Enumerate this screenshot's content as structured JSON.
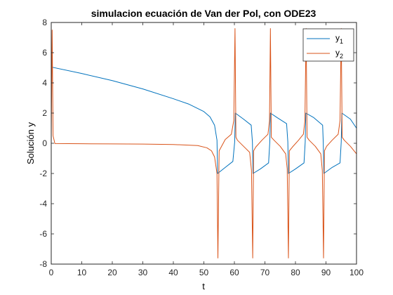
{
  "chart_data": {
    "type": "line",
    "title": "simulacion ecuación de Van der Pol, con ODE23",
    "xlabel": "t",
    "ylabel": "Solución y",
    "xlim": [
      0,
      100
    ],
    "ylim": [
      -8,
      8
    ],
    "xticks": [
      0,
      10,
      20,
      30,
      40,
      50,
      60,
      70,
      80,
      90,
      100
    ],
    "yticks": [
      -8,
      -6,
      -4,
      -2,
      0,
      2,
      4,
      6,
      8
    ],
    "grid": false,
    "legend_position": "top-right",
    "legend": [
      {
        "name": "y",
        "subscript": "1"
      },
      {
        "name": "y",
        "subscript": "2"
      }
    ],
    "series": [
      {
        "name": "y1",
        "color": "#0072BD",
        "x": [
          0,
          10,
          20,
          30,
          40,
          45,
          50,
          52,
          53.5,
          54.3,
          54.5,
          57,
          59.5,
          60.1,
          60.3,
          63,
          65.5,
          65.9,
          66.1,
          68.5,
          71.2,
          71.6,
          71.8,
          74,
          77.1,
          77.5,
          77.7,
          80,
          82.8,
          83.2,
          83.4,
          86,
          88.9,
          89.1,
          89.3,
          92,
          94.6,
          95,
          95.2,
          98,
          100
        ],
        "y": [
          5.05,
          4.62,
          4.15,
          3.6,
          2.95,
          2.6,
          2.1,
          1.75,
          1.2,
          0.2,
          -2.0,
          -1.6,
          -1.2,
          0.1,
          2.0,
          1.6,
          1.2,
          0.1,
          -2.0,
          -1.7,
          -1.3,
          0.1,
          2.0,
          1.7,
          1.3,
          0.1,
          -2.0,
          -1.7,
          -1.3,
          0.1,
          2.0,
          1.7,
          1.2,
          0.1,
          -2.0,
          -1.6,
          -1.3,
          0.1,
          2.0,
          1.6,
          1.0
        ]
      },
      {
        "name": "y2",
        "color": "#D95319",
        "x": [
          0,
          0.3,
          0.6,
          1.2,
          10,
          20,
          30,
          40,
          48,
          51,
          52.5,
          53.5,
          54.3,
          54.6,
          55,
          57,
          59,
          59.8,
          60.2,
          60.5,
          61,
          63,
          65,
          65.6,
          66,
          66.3,
          67,
          69,
          71,
          71.5,
          71.8,
          72.1,
          73,
          75,
          76.8,
          77.3,
          77.7,
          78,
          79,
          81,
          82.6,
          83.1,
          83.5,
          83.8,
          84.5,
          86.5,
          88.3,
          88.8,
          89.2,
          89.5,
          90.2,
          92,
          94,
          94.6,
          95,
          95.3,
          96,
          98,
          100
        ],
        "y": [
          0,
          7.5,
          0.5,
          -0.02,
          -0.03,
          -0.04,
          -0.05,
          -0.08,
          -0.15,
          -0.3,
          -0.5,
          -0.9,
          -2.0,
          -7.6,
          -0.5,
          0.25,
          0.6,
          1.5,
          7.6,
          0.4,
          0.2,
          -0.2,
          -0.6,
          -1.8,
          -7.6,
          -0.5,
          -0.25,
          0.2,
          0.6,
          1.5,
          7.6,
          0.4,
          0.2,
          -0.2,
          -0.7,
          -1.7,
          -7.6,
          -0.5,
          -0.25,
          0.2,
          0.6,
          1.5,
          7.6,
          0.4,
          0.2,
          -0.2,
          -0.7,
          -1.8,
          -7.6,
          -0.5,
          -0.2,
          0.2,
          0.6,
          1.5,
          7.6,
          0.4,
          0.2,
          -0.2,
          -0.7
        ]
      }
    ]
  }
}
